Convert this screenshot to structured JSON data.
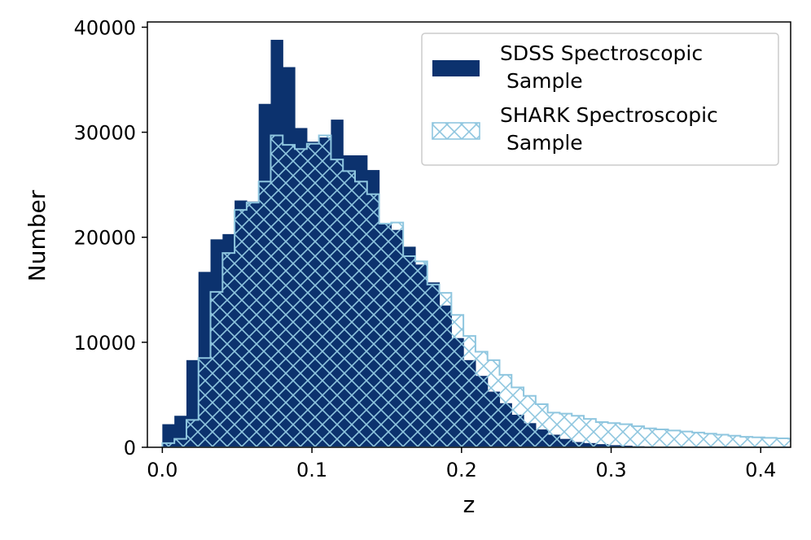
{
  "chart_data": {
    "type": "histogram",
    "xlabel": "z",
    "ylabel": "Number",
    "xlim": [
      -0.01,
      0.42
    ],
    "ylim": [
      0,
      40500
    ],
    "x_ticks": [
      "0.0",
      "0.1",
      "0.2",
      "0.3",
      "0.4"
    ],
    "x_tick_values": [
      0.0,
      0.1,
      0.2,
      0.3,
      0.4
    ],
    "y_ticks": [
      "0",
      "10000",
      "20000",
      "30000",
      "40000"
    ],
    "y_tick_values": [
      0,
      10000,
      20000,
      30000,
      40000
    ],
    "bin_edges_start": 0.0,
    "bin_width": 0.00805,
    "legend_position": "upper-right",
    "series": [
      {
        "name": "SDSS Spectroscopic\n Sample",
        "legend_line1": "SDSS Spectroscopic",
        "legend_line2": " Sample",
        "style": "filled",
        "color": "#0c326e",
        "values": [
          2200,
          3000,
          8300,
          16700,
          19800,
          20300,
          23500,
          23400,
          32700,
          38800,
          36200,
          30400,
          29100,
          29500,
          31200,
          27800,
          27800,
          26400,
          21300,
          20700,
          19100,
          17400,
          15700,
          13500,
          10400,
          8300,
          6800,
          5300,
          4200,
          3100,
          2300,
          1700,
          1200,
          800,
          500,
          400,
          300,
          200,
          150,
          100,
          80,
          60,
          40,
          30,
          20,
          15,
          10,
          5,
          3,
          2,
          1
        ]
      },
      {
        "name": "SHARK Spectroscopic\n Sample",
        "legend_line1": "SHARK Spectroscopic",
        "legend_line2": " Sample",
        "style": "hatched",
        "color": "#8fc6df",
        "values": [
          400,
          800,
          2600,
          8500,
          14800,
          18500,
          22600,
          23300,
          25300,
          29700,
          28800,
          28400,
          28900,
          29700,
          27400,
          26300,
          25300,
          24100,
          21300,
          21400,
          18200,
          17700,
          15500,
          14700,
          12600,
          10600,
          9100,
          8300,
          6900,
          5700,
          4900,
          4100,
          3300,
          3200,
          3000,
          2700,
          2400,
          2300,
          2200,
          2000,
          1800,
          1700,
          1600,
          1500,
          1400,
          1300,
          1200,
          1100,
          1000,
          950,
          900,
          850,
          800
        ]
      }
    ]
  }
}
